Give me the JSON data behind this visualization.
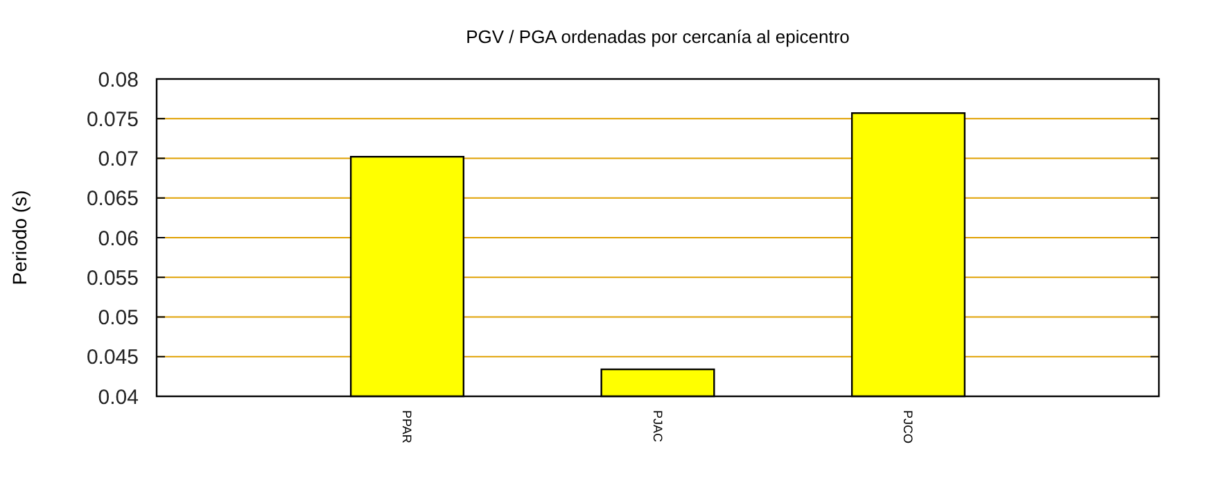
{
  "chart_data": {
    "type": "bar",
    "title": "PGV / PGA ordenadas por cercanía al epicentro",
    "ylabel": "Periodo (s)",
    "categories": [
      "PPAR",
      "PJAC",
      "PJCO"
    ],
    "values": [
      0.0702,
      0.0434,
      0.0757
    ],
    "color": "#ffff00",
    "ylim": [
      0.04,
      0.08
    ],
    "yticks": [
      0.04,
      0.045,
      0.05,
      0.055,
      0.06,
      0.065,
      0.07,
      0.075,
      0.08
    ],
    "grid": "y"
  }
}
